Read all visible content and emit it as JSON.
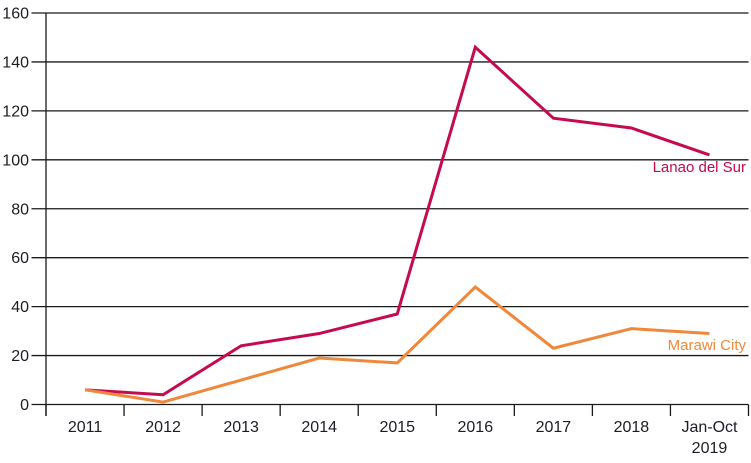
{
  "chart_data": {
    "type": "line",
    "title": "",
    "xlabel": "",
    "ylabel": "",
    "categories": [
      "2011",
      "2012",
      "2013",
      "2014",
      "2015",
      "2016",
      "2017",
      "2018",
      "Jan-Oct 2019"
    ],
    "series": [
      {
        "name": "Lanao del Sur",
        "color": "#c60a50",
        "values": [
          6,
          4,
          24,
          29,
          37,
          146,
          117,
          113,
          102
        ]
      },
      {
        "name": "Marawi City",
        "color": "#f0883c",
        "values": [
          6,
          1,
          10,
          19,
          17,
          48,
          23,
          31,
          29
        ]
      }
    ],
    "ylim": [
      0,
      160
    ],
    "ytick_step": 20,
    "yticks": [
      "0",
      "20",
      "40",
      "60",
      "80",
      "100",
      "120",
      "140",
      "160"
    ],
    "grid": "horizontal",
    "legend_position": "end-of-line-inline-labels",
    "axis_color": "#1a1a1a",
    "label_color": "#1c1c24",
    "line_width": 3
  }
}
